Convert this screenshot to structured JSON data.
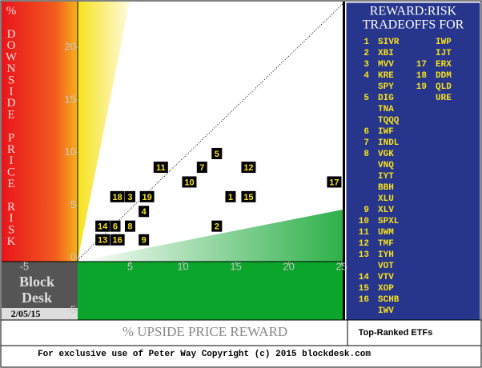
{
  "chart_data": {
    "type": "scatter",
    "point_labels": [
      "1",
      "2",
      "3",
      "4",
      "5",
      "6",
      "7",
      "8",
      "9",
      "10",
      "11",
      "12",
      "13",
      "14",
      "15",
      "16",
      "17",
      "18",
      "19"
    ],
    "x": [
      14.5,
      13.2,
      5.0,
      6.3,
      13.2,
      3.6,
      11.8,
      5.0,
      6.3,
      10.6,
      7.9,
      16.2,
      2.4,
      2.4,
      16.2,
      3.8,
      24.3,
      3.8,
      6.6
    ],
    "values": [
      5.8,
      3.0,
      5.8,
      4.4,
      9.9,
      3.0,
      8.6,
      3.0,
      1.7,
      7.2,
      8.6,
      8.6,
      1.7,
      3.0,
      5.8,
      1.7,
      7.2,
      5.8,
      5.8
    ],
    "xlim": [
      -7.3,
      25.1
    ],
    "ylim": [
      -6,
      24.5
    ],
    "xticks": [
      -5,
      5,
      10,
      15,
      20,
      25
    ],
    "yticks": [
      -5,
      0,
      5,
      10,
      15,
      20,
      25
    ],
    "xlabel": "% UPSIDE PRICE REWARD",
    "ylabel": "% DOWNSIDE PRICE RISK",
    "brand": [
      "Block",
      "Desk"
    ],
    "date": "2/05/15"
  },
  "panel": {
    "title": [
      "REWARD:RISK",
      "TRADEOFFS FOR"
    ],
    "columns": [
      [
        {
          "num": "1",
          "ticker": "SIVR"
        },
        {
          "num": "2",
          "ticker": "XBI"
        },
        {
          "num": "3",
          "ticker": "MVV"
        },
        {
          "num": "4",
          "ticker": "KRE"
        },
        {
          "ticker": "SPY"
        },
        {
          "num": "5",
          "ticker": "DIG"
        },
        {
          "ticker": "TNA"
        },
        {
          "ticker": "TQQQ"
        },
        {
          "num": "6",
          "ticker": "IWF"
        },
        {
          "num": "7",
          "ticker": "INDL"
        },
        {
          "num": "8",
          "ticker": "VGK"
        },
        {
          "ticker": "VNQ"
        },
        {
          "ticker": "IYT"
        },
        {
          "ticker": "BBH"
        },
        {
          "ticker": "XLU"
        },
        {
          "num": "9",
          "ticker": "XLV"
        },
        {
          "num": "10",
          "ticker": "SPXL"
        },
        {
          "num": "11",
          "ticker": "UWM"
        },
        {
          "num": "12",
          "ticker": "TMF"
        },
        {
          "num": "13",
          "ticker": "IYH"
        },
        {
          "ticker": "VOT"
        },
        {
          "num": "14",
          "ticker": "VTV"
        },
        {
          "num": "15",
          "ticker": "XOP"
        },
        {
          "num": "16",
          "ticker": "SCHB"
        },
        {
          "ticker": "IWV"
        }
      ],
      [
        {
          "ticker": "IWP"
        },
        {
          "ticker": "IJT"
        },
        {
          "num": "17",
          "ticker": "ERX"
        },
        {
          "num": "18",
          "ticker": "DDM"
        },
        {
          "num": "19",
          "ticker": "QLD"
        },
        {
          "ticker": "URE"
        }
      ]
    ],
    "caption": "Top-Ranked ETFs"
  },
  "footer": "For exclusive use of Peter Way Copyright (c) 2015 blockdesk.com"
}
